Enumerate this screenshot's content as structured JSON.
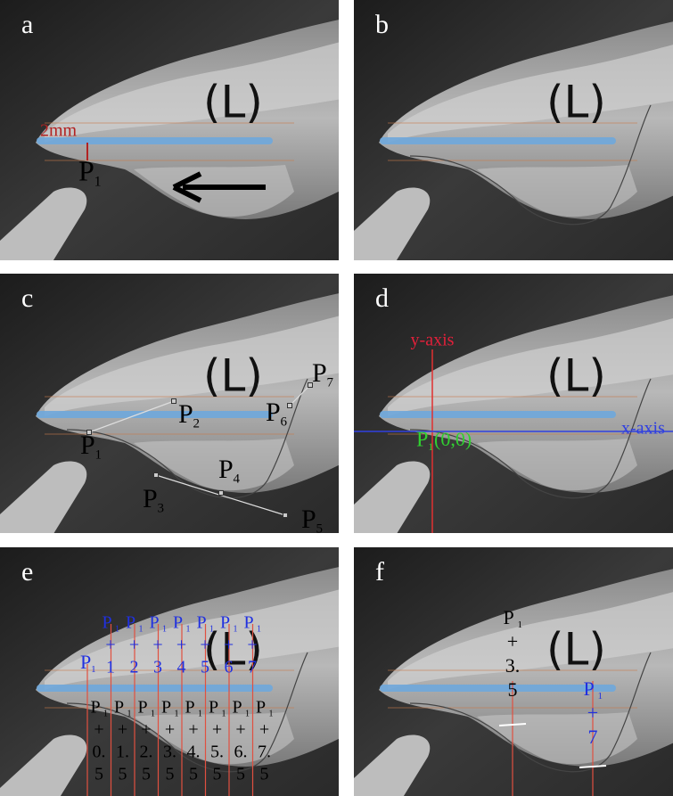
{
  "panels": [
    {
      "letter": "a",
      "side": "(L)",
      "scale": "2mm",
      "point": {
        "p": "P",
        "sub": "1"
      }
    },
    {
      "letter": "b",
      "side": "(L)"
    },
    {
      "letter": "c",
      "side": "(L)",
      "points": [
        {
          "p": "P",
          "sub": "1"
        },
        {
          "p": "P",
          "sub": "2"
        },
        {
          "p": "P",
          "sub": "3"
        },
        {
          "p": "P",
          "sub": "4"
        },
        {
          "p": "P",
          "sub": "5"
        },
        {
          "p": "P",
          "sub": "6"
        },
        {
          "p": "P",
          "sub": "7"
        }
      ]
    },
    {
      "letter": "d",
      "side": "(L)",
      "y_axis": "y-axis",
      "x_axis": "x-axis",
      "origin": {
        "p": "P",
        "sub": "1",
        "coords": "(0,0)"
      }
    },
    {
      "letter": "e",
      "side": "(L)",
      "start": {
        "p": "P",
        "sub": "1"
      },
      "upper": [
        {
          "p": "P",
          "sub": "1",
          "plus": "+",
          "n": [
            "1"
          ]
        },
        {
          "p": "P",
          "sub": "1",
          "plus": "+",
          "n": [
            "2"
          ]
        },
        {
          "p": "P",
          "sub": "1",
          "plus": "+",
          "n": [
            "3"
          ]
        },
        {
          "p": "P",
          "sub": "1",
          "plus": "+",
          "n": [
            "4"
          ]
        },
        {
          "p": "P",
          "sub": "1",
          "plus": "+",
          "n": [
            "5"
          ]
        },
        {
          "p": "P",
          "sub": "1",
          "plus": "+",
          "n": [
            "6"
          ]
        },
        {
          "p": "P",
          "sub": "1",
          "plus": "+",
          "n": [
            "7"
          ]
        }
      ],
      "lower": [
        {
          "p": "P",
          "sub": "1",
          "plus": "+",
          "n": [
            "0.",
            "5"
          ]
        },
        {
          "p": "P",
          "sub": "1",
          "plus": "+",
          "n": [
            "1.",
            "5"
          ]
        },
        {
          "p": "P",
          "sub": "1",
          "plus": "+",
          "n": [
            "2.",
            "5"
          ]
        },
        {
          "p": "P",
          "sub": "1",
          "plus": "+",
          "n": [
            "3.",
            "5"
          ]
        },
        {
          "p": "P",
          "sub": "1",
          "plus": "+",
          "n": [
            "4.",
            "5"
          ]
        },
        {
          "p": "P",
          "sub": "1",
          "plus": "+",
          "n": [
            "5.",
            "5"
          ]
        },
        {
          "p": "P",
          "sub": "1",
          "plus": "+",
          "n": [
            "6.",
            "5"
          ]
        },
        {
          "p": "P",
          "sub": "1",
          "plus": "+",
          "n": [
            "7.",
            "5"
          ]
        }
      ]
    },
    {
      "letter": "f",
      "side": "(L)",
      "labels": [
        {
          "p": "P",
          "sub": "1",
          "plus": "+",
          "n": [
            "3.",
            "5"
          ]
        },
        {
          "p": "P",
          "sub": "1",
          "plus": "+",
          "n": [
            "7"
          ]
        }
      ]
    }
  ]
}
